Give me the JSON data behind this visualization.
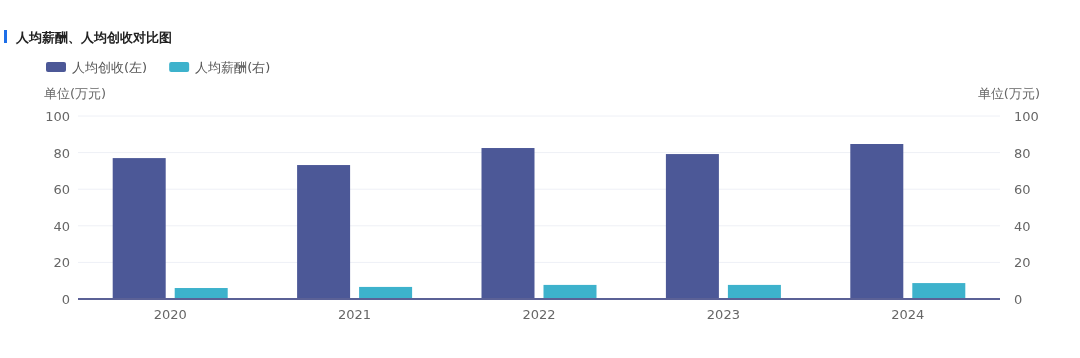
{
  "chart_data": {
    "type": "bar",
    "title": "人均薪酬、人均创收对比图",
    "categories": [
      "2020",
      "2021",
      "2022",
      "2023",
      "2024"
    ],
    "series": [
      {
        "name": "人均创收(左)",
        "color": "#4c5897",
        "values": [
          77,
          73.2,
          82.5,
          79.2,
          84.7
        ]
      },
      {
        "name": "人均薪酬(右)",
        "color": "#3db2cc",
        "values": [
          6,
          6.6,
          7.7,
          7.7,
          8.7
        ],
        "axis": "y2"
      }
    ],
    "ylabel": "单位(万元)",
    "y2label": "单位(万元)",
    "ylim": [
      0,
      100
    ],
    "yticks": [
      0,
      20,
      40,
      60,
      80,
      100
    ],
    "y2lim": [
      0,
      100
    ],
    "y2ticks": [
      0,
      20,
      40,
      60,
      80,
      100
    ],
    "grid": "y",
    "legend": "top left"
  }
}
